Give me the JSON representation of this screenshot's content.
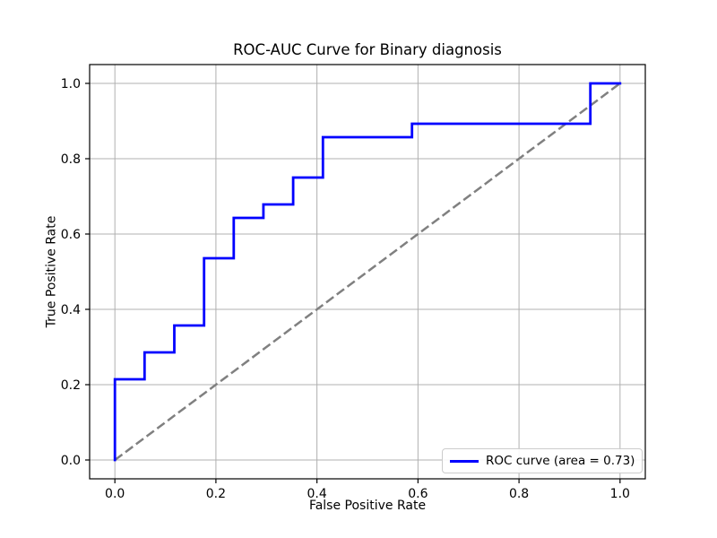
{
  "chart_data": {
    "type": "line",
    "title": "ROC-AUC Curve for Binary diagnosis",
    "xlabel": "False Positive Rate",
    "ylabel": "True Positive Rate",
    "xlim": [
      -0.05,
      1.05
    ],
    "ylim": [
      -0.05,
      1.05
    ],
    "grid": true,
    "grid_color": "#b0b0b0",
    "background_color": "#ffffff",
    "ticks": {
      "x": [
        {
          "value": 0.0,
          "label": "0.0"
        },
        {
          "value": 0.2,
          "label": "0.2"
        },
        {
          "value": 0.4,
          "label": "0.4"
        },
        {
          "value": 0.6,
          "label": "0.6"
        },
        {
          "value": 0.8,
          "label": "0.8"
        },
        {
          "value": 1.0,
          "label": "1.0"
        }
      ],
      "y": [
        {
          "value": 0.0,
          "label": "0.0"
        },
        {
          "value": 0.2,
          "label": "0.2"
        },
        {
          "value": 0.4,
          "label": "0.4"
        },
        {
          "value": 0.6,
          "label": "0.6"
        },
        {
          "value": 0.8,
          "label": "0.8"
        },
        {
          "value": 1.0,
          "label": "1.0"
        }
      ]
    },
    "legend": {
      "position": "lower right",
      "entries": [
        {
          "label": "ROC curve (area = 0.73)",
          "color": "#0000ff"
        }
      ]
    },
    "auc": 0.73,
    "series": [
      {
        "name": "chance-diagonal",
        "color": "#808080",
        "style": "dashed",
        "line_width": 2.5,
        "points": [
          [
            0,
            0
          ],
          [
            1,
            1
          ]
        ]
      },
      {
        "name": "roc-curve",
        "color": "#0000ff",
        "style": "solid",
        "line_width": 2.8,
        "points": [
          [
            0.0,
            0.0
          ],
          [
            0.0,
            0.2143
          ],
          [
            0.0588,
            0.2143
          ],
          [
            0.0588,
            0.2857
          ],
          [
            0.1176,
            0.2857
          ],
          [
            0.1176,
            0.3571
          ],
          [
            0.1765,
            0.3571
          ],
          [
            0.1765,
            0.5357
          ],
          [
            0.2353,
            0.5357
          ],
          [
            0.2353,
            0.6429
          ],
          [
            0.2941,
            0.6429
          ],
          [
            0.2941,
            0.6786
          ],
          [
            0.3529,
            0.6786
          ],
          [
            0.3529,
            0.75
          ],
          [
            0.4118,
            0.75
          ],
          [
            0.4118,
            0.8571
          ],
          [
            0.5882,
            0.8571
          ],
          [
            0.5882,
            0.8929
          ],
          [
            0.9412,
            0.8929
          ],
          [
            0.9412,
            1.0
          ],
          [
            1.0,
            1.0
          ]
        ]
      }
    ]
  }
}
